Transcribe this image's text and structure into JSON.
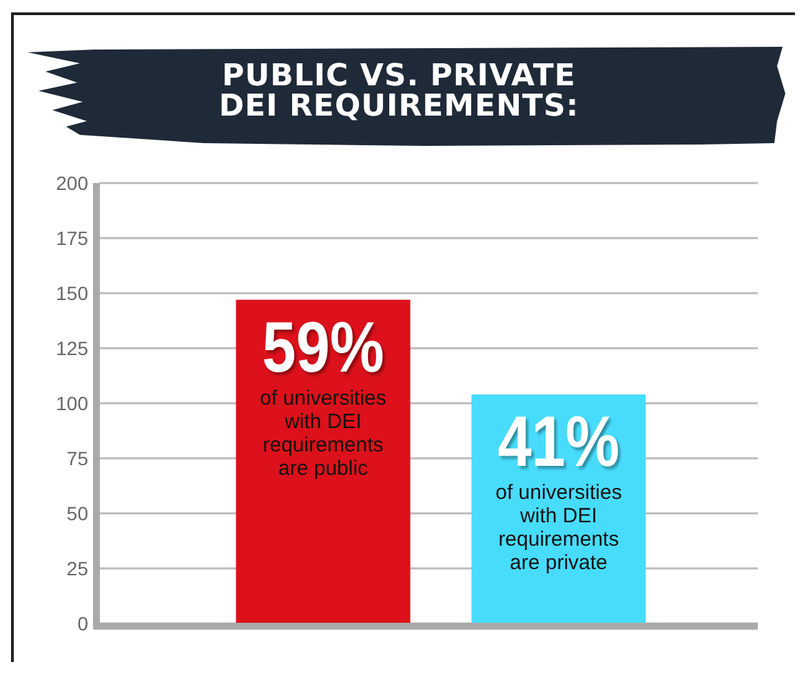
{
  "chart_data": {
    "type": "bar",
    "title": "PUBLIC VS. PRIVATE\nDEI REQUIREMENTS:",
    "categories": [
      null,
      null
    ],
    "values": [
      147,
      104
    ],
    "colors": [
      "#dc111b",
      "#47dcfc"
    ],
    "annotations": [
      "59%\nof universities\nwith DEI\nrequirements\nare public",
      "41%\nof universities\nwith DEI\nrequirements\nare private"
    ],
    "ylim": [
      0,
      200
    ],
    "yticks": [
      0,
      25,
      50,
      75,
      100,
      125,
      150,
      175,
      200
    ],
    "grid": "y"
  }
}
